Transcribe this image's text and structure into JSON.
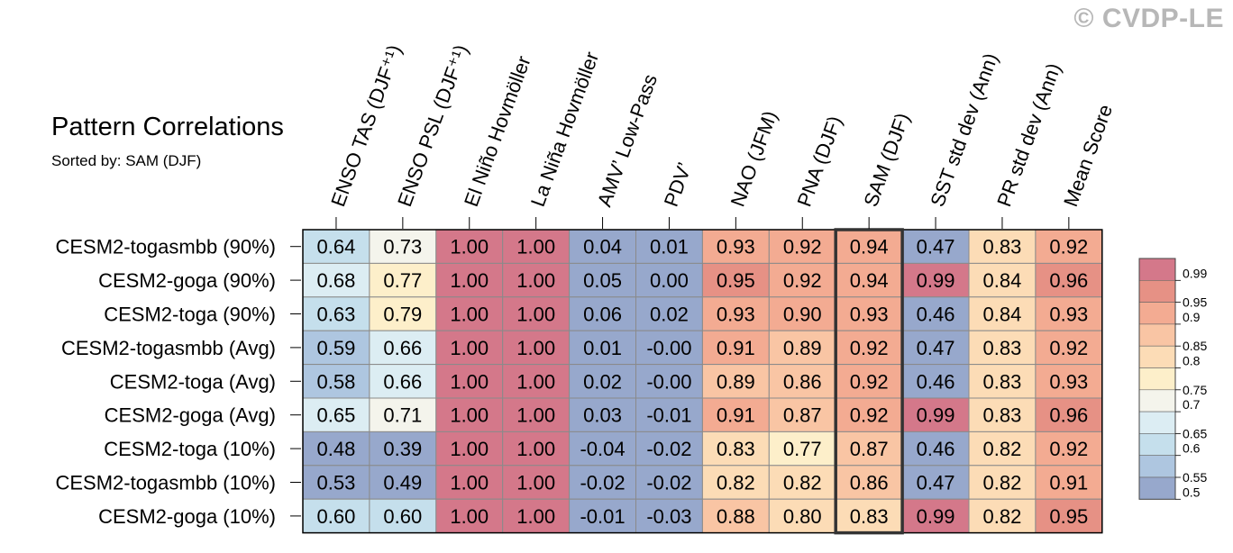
{
  "watermark": "© CVDP-LE",
  "chart_data": {
    "type": "heatmap",
    "title": "Pattern Correlations",
    "subtitle": "Sorted by: SAM (DJF)",
    "columns": [
      "ENSO TAS (DJF⁺¹)",
      "ENSO PSL (DJF⁺¹)",
      "El Niño Hovmöller",
      "La Niña Hovmöller",
      "AMV’ Low-Pass",
      "PDV’",
      "NAO (JFM)",
      "PNA (DJF)",
      "SAM (DJF)",
      "SST std dev (Ann)",
      "PR std dev (Ann)",
      "Mean Score"
    ],
    "rows": [
      "CESM2-togasmbb (90%)",
      "CESM2-goga (90%)",
      "CESM2-toga (90%)",
      "CESM2-togasmbb (Avg)",
      "CESM2-toga (Avg)",
      "CESM2-goga (Avg)",
      "CESM2-toga (10%)",
      "CESM2-togasmbb (10%)",
      "CESM2-goga (10%)"
    ],
    "values": [
      [
        "0.64",
        "0.73",
        "1.00",
        "1.00",
        "0.04",
        "0.01",
        "0.93",
        "0.92",
        "0.94",
        "0.47",
        "0.83",
        "0.92"
      ],
      [
        "0.68",
        "0.77",
        "1.00",
        "1.00",
        "0.05",
        "0.00",
        "0.95",
        "0.92",
        "0.94",
        "0.99",
        "0.84",
        "0.96"
      ],
      [
        "0.63",
        "0.79",
        "1.00",
        "1.00",
        "0.06",
        "0.02",
        "0.93",
        "0.90",
        "0.93",
        "0.46",
        "0.84",
        "0.93"
      ],
      [
        "0.59",
        "0.66",
        "1.00",
        "1.00",
        "0.01",
        "-0.00",
        "0.91",
        "0.89",
        "0.92",
        "0.47",
        "0.83",
        "0.92"
      ],
      [
        "0.58",
        "0.66",
        "1.00",
        "1.00",
        "0.02",
        "-0.00",
        "0.89",
        "0.86",
        "0.92",
        "0.46",
        "0.83",
        "0.93"
      ],
      [
        "0.65",
        "0.71",
        "1.00",
        "1.00",
        "0.03",
        "-0.01",
        "0.91",
        "0.87",
        "0.92",
        "0.99",
        "0.83",
        "0.96"
      ],
      [
        "0.48",
        "0.39",
        "1.00",
        "1.00",
        "-0.04",
        "-0.02",
        "0.83",
        "0.77",
        "0.87",
        "0.46",
        "0.82",
        "0.92"
      ],
      [
        "0.53",
        "0.49",
        "1.00",
        "1.00",
        "-0.02",
        "-0.02",
        "0.82",
        "0.82",
        "0.86",
        "0.47",
        "0.82",
        "0.91"
      ],
      [
        "0.60",
        "0.60",
        "1.00",
        "1.00",
        "-0.01",
        "-0.03",
        "0.88",
        "0.80",
        "0.83",
        "0.99",
        "0.82",
        "0.95"
      ]
    ],
    "highlight_column": "SAM (DJF)",
    "colorbar": {
      "labels": [
        "0.99",
        "0.95",
        "0.9",
        "0.85",
        "0.8",
        "0.75",
        "0.7",
        "0.65",
        "0.6",
        "0.55",
        "0.5"
      ],
      "thresholds": [
        0.5,
        0.55,
        0.6,
        0.65,
        0.7,
        0.75,
        0.8,
        0.85,
        0.9,
        0.95,
        0.99
      ],
      "colors": [
        "#97a8cc",
        "#aec6e0",
        "#c5dfec",
        "#dcedf3",
        "#f4f4ec",
        "#fdefca",
        "#fcdcb6",
        "#f9c5a4",
        "#f3ab92",
        "#e69185",
        "#d4788a"
      ]
    },
    "grid": true
  }
}
